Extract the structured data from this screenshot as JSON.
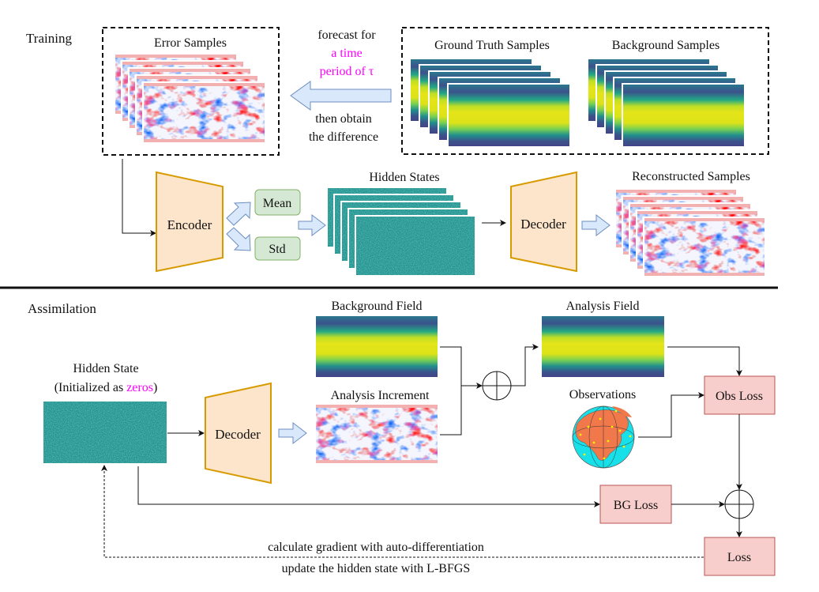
{
  "training": {
    "section_label": "Training",
    "error_samples_title": "Error Samples",
    "forecast_line1": "forecast for",
    "forecast_line2": "a time",
    "forecast_line3": "period of τ",
    "difference_line1": "then obtain",
    "difference_line2": "the difference",
    "ground_truth_title": "Ground Truth Samples",
    "background_title": "Background Samples",
    "encoder_label": "Encoder",
    "mean_label": "Mean",
    "std_label": "Std",
    "hidden_states_title": "Hidden States",
    "decoder_label": "Decoder",
    "reconstructed_title": "Reconstructed Samples"
  },
  "assimilation": {
    "section_label": "Assimilation",
    "hidden_state_title": "Hidden State",
    "initialized_prefix": "(Initialized as ",
    "initialized_highlight": "zeros",
    "initialized_suffix": ")",
    "decoder_label": "Decoder",
    "background_field_title": "Background Field",
    "analysis_increment_title": "Analysis Increment",
    "analysis_field_title": "Analysis Field",
    "observations_title": "Observations",
    "obs_loss_label": "Obs Loss",
    "bg_loss_label": "BG Loss",
    "loss_label": "Loss",
    "gradient_text": "calculate gradient with auto-differentiation",
    "update_text": "update the hidden state with L-BFGS"
  },
  "colors": {
    "highlight": "#ff00ff",
    "encoder_fill": "#fde5cc",
    "encoder_stroke": "#d79b00",
    "stat_box_fill": "#d5e8d4",
    "stat_box_stroke": "#82b366",
    "loss_fill": "#f8cecc",
    "loss_stroke": "#b85450",
    "block_arrow_fill": "#dae8fc",
    "block_arrow_stroke": "#6c8ebf"
  }
}
